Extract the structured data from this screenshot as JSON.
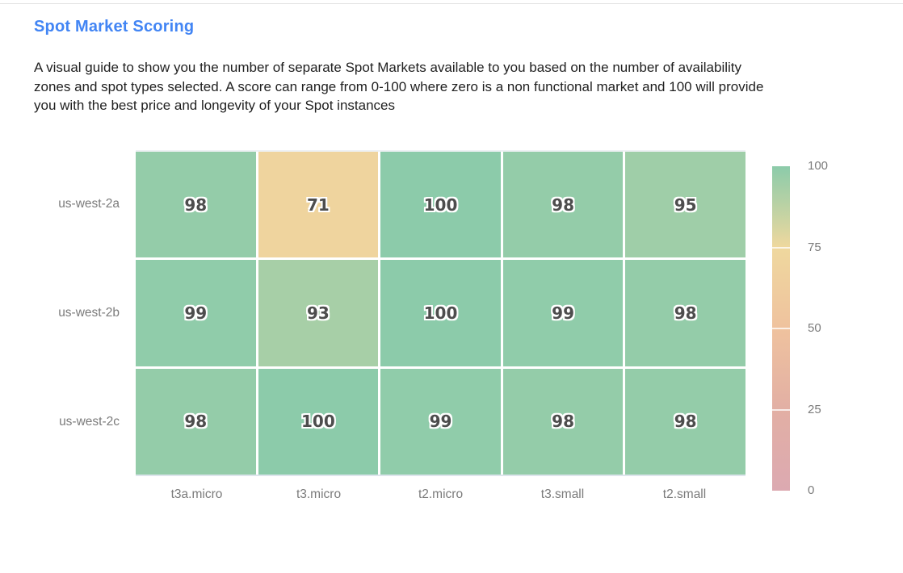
{
  "page": {
    "title": "Spot Market Scoring",
    "description": "A visual guide to show you the number of separate Spot Markets available to you based on the number of availability zones and spot types selected. A score can range from 0-100 where zero is a non functional market and 100 will provide you with the best price and longevity of your Spot instances",
    "description_lines": [
      "A visual guide to show you the number of separate Spot Markets available to you based on the number of availability",
      "zones and spot types selected. A score can range from 0-100 where zero is a non functional market and 100 will provide",
      "you with the best price and longevity of your Spot instances"
    ]
  },
  "colors": {
    "title": "#4285f4",
    "body_text": "#212121",
    "axis_label": "#7b7b7b",
    "cell_text": "#4d4d4d",
    "top_rule": "#e4e4e4"
  },
  "chart_data": {
    "type": "heatmap",
    "title": "",
    "x": [
      "t3a.micro",
      "t3.micro",
      "t2.micro",
      "t3.small",
      "t2.small"
    ],
    "y": [
      "us-west-2a",
      "us-west-2b",
      "us-west-2c"
    ],
    "z": [
      [
        98,
        71,
        100,
        98,
        95
      ],
      [
        99,
        93,
        100,
        99,
        98
      ],
      [
        98,
        100,
        99,
        98,
        98
      ]
    ],
    "zmin": 0,
    "zmax": 100,
    "grid": false,
    "legend_position": "right",
    "colorbar_ticks": [
      "100",
      "75",
      "50",
      "25",
      "0"
    ],
    "colorbar_tick_values": [
      100,
      75,
      50,
      25,
      0
    ],
    "colorscale": [
      [
        0.0,
        "#dca9b1"
      ],
      [
        0.25,
        "#e2afa4"
      ],
      [
        0.5,
        "#efc29e"
      ],
      [
        0.75,
        "#efd89e"
      ],
      [
        0.85,
        "#c5d3a3"
      ],
      [
        1.0,
        "#8ccbaa"
      ]
    ]
  }
}
